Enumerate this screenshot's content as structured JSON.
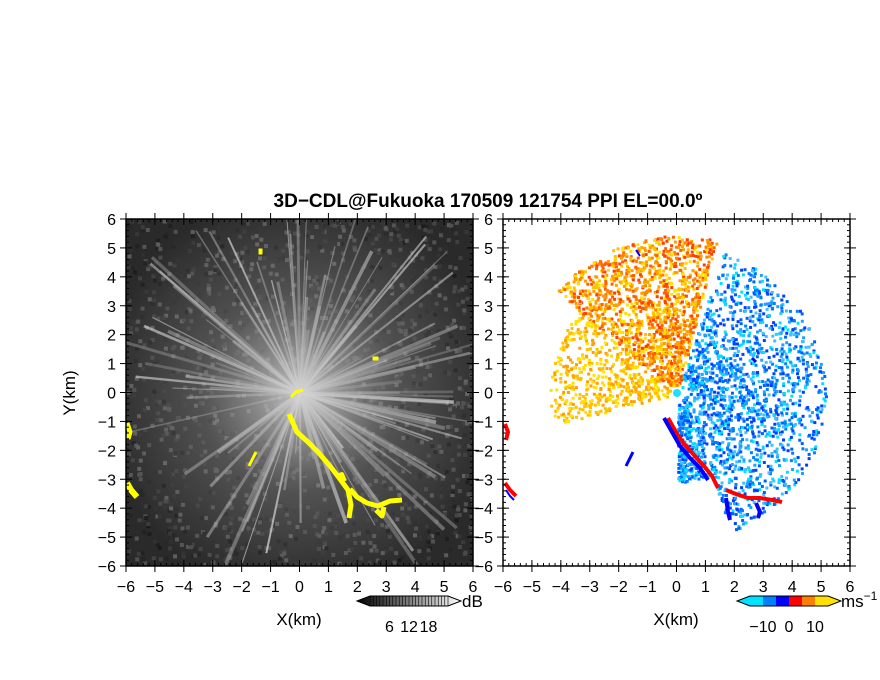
{
  "chart_data": [
    {
      "type": "heatmap",
      "title": "3D−CDL@Fukuoka 170509 121754 PPI EL=00.0º",
      "xlabel": "X(km)",
      "ylabel": "Y(km)",
      "xlim": [
        -6,
        6
      ],
      "ylim": [
        -6,
        6
      ],
      "xticks": [
        -6,
        -5,
        -4,
        -3,
        -2,
        -1,
        0,
        1,
        2,
        3,
        4,
        5,
        6
      ],
      "yticks": [
        -6,
        -5,
        -4,
        -3,
        -2,
        -1,
        0,
        1,
        2,
        3,
        4,
        5,
        6
      ],
      "colorbar": {
        "unit": "dB",
        "ticks": [
          6,
          12,
          18
        ],
        "range": [
          0,
          24
        ],
        "colors": [
          "#000000",
          "#ffffff"
        ]
      },
      "highlight_color": "#ffff00",
      "background_color": "#2a2a2a"
    },
    {
      "type": "heatmap",
      "xlabel": "X(km)",
      "ylabel": "",
      "xlim": [
        -6,
        6
      ],
      "ylim": [
        -6,
        6
      ],
      "xticks": [
        -6,
        -5,
        -4,
        -3,
        -2,
        -1,
        0,
        1,
        2,
        3,
        4,
        5,
        6
      ],
      "yticks": [
        -6,
        -5,
        -4,
        -3,
        -2,
        -1,
        0,
        1,
        2,
        3,
        4,
        5,
        6
      ],
      "colorbar": {
        "unit": "ms",
        "unit_exp": "−1",
        "ticks": [
          -10,
          0,
          10
        ],
        "tick_labels": [
          "−10",
          "0",
          "10"
        ],
        "range": [
          -15,
          15
        ],
        "colors": [
          "#00e0ff",
          "#0080ff",
          "#0000ff",
          "#ff0000",
          "#ff8000",
          "#ffe000"
        ]
      }
    }
  ]
}
